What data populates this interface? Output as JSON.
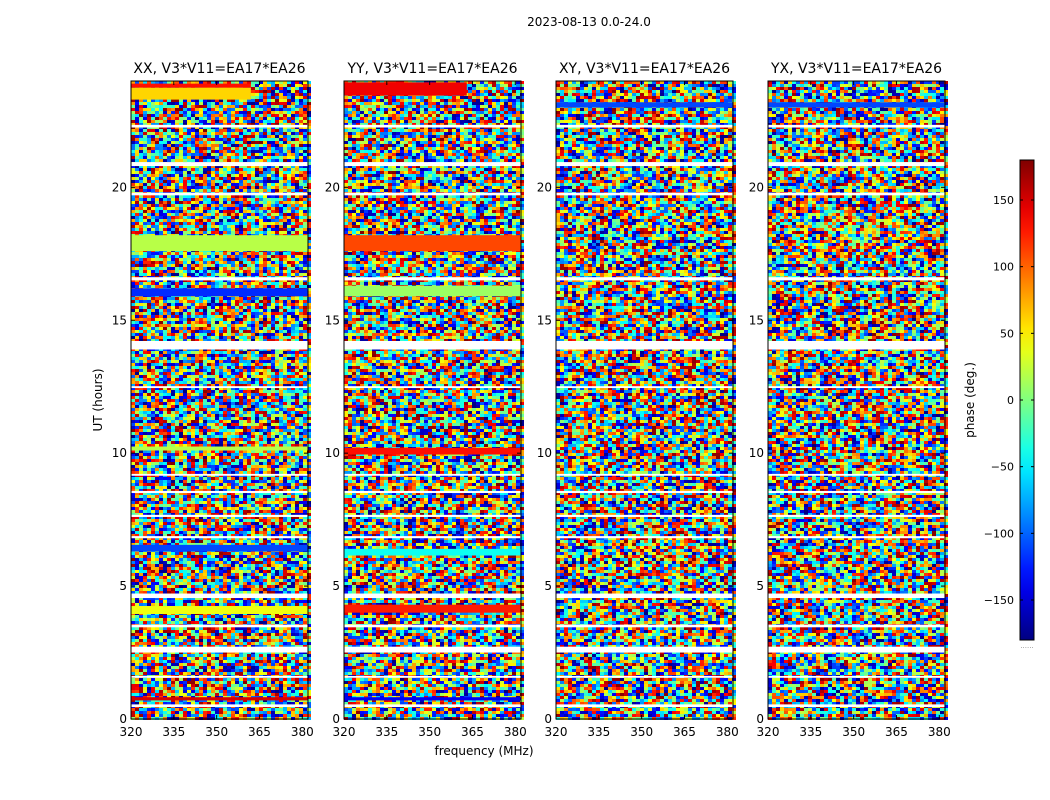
{
  "figure": {
    "suptitle": "2023-08-13 0.0-24.0",
    "xlabel": "frequency (MHz)",
    "ylabel": "UT (hours)"
  },
  "chart_data": {
    "type": "heatmap",
    "x_range": [
      320,
      382
    ],
    "y_range": [
      0,
      24
    ],
    "x_ticks": [
      320,
      335,
      350,
      365,
      380
    ],
    "y_ticks": [
      0,
      5,
      10,
      15,
      20
    ],
    "panels": [
      {
        "title": "XX, V3*V11=EA17*EA26",
        "show_ylabels": true,
        "coherent_bands": [
          {
            "t0": 23.3,
            "t1": 23.75,
            "phase": 60,
            "f1": 362
          },
          {
            "t0": 23.75,
            "t1": 23.9,
            "phase": 130,
            "f1": 362
          },
          {
            "t0": 17.6,
            "t1": 18.2,
            "phase": 20
          },
          {
            "t0": 15.9,
            "t1": 16.2,
            "phase": -120
          },
          {
            "t0": 10.1,
            "t1": 10.25,
            "phase": 20
          },
          {
            "t0": 6.3,
            "t1": 6.55,
            "phase": -110
          },
          {
            "t0": 3.95,
            "t1": 4.25,
            "phase": 40
          },
          {
            "t0": 0.7,
            "t1": 0.82,
            "phase": 150
          }
        ]
      },
      {
        "title": "YY, V3*V11=EA17*EA26",
        "show_ylabels": true,
        "coherent_bands": [
          {
            "t0": 23.45,
            "t1": 23.95,
            "phase": 140,
            "f1": 363
          },
          {
            "t0": 17.6,
            "t1": 18.2,
            "phase": 110
          },
          {
            "t0": 15.9,
            "t1": 16.3,
            "phase": 10
          },
          {
            "t0": 9.95,
            "t1": 10.2,
            "phase": 130
          },
          {
            "t0": 6.15,
            "t1": 6.4,
            "phase": -40
          },
          {
            "t0": 4.0,
            "t1": 4.3,
            "phase": 125
          },
          {
            "t0": 0.7,
            "t1": 0.82,
            "phase": -140
          }
        ]
      },
      {
        "title": "XY, V3*V11=EA17*EA26",
        "show_ylabels": true,
        "coherent_bands": [
          {
            "t0": 23.0,
            "t1": 23.2,
            "phase": -110
          }
        ]
      },
      {
        "title": "YX, V3*V11=EA17*EA26",
        "show_ylabels": true,
        "coherent_bands": [
          {
            "t0": 23.0,
            "t1": 23.2,
            "phase": -110
          }
        ]
      }
    ],
    "flag_gaps_hours": [
      [
        0.45,
        0.55
      ],
      [
        1.55,
        1.62
      ],
      [
        2.5,
        2.72
      ],
      [
        3.45,
        3.55
      ],
      [
        4.55,
        4.72
      ],
      [
        6.8,
        6.88
      ],
      [
        7.6,
        7.68
      ],
      [
        8.5,
        8.58
      ],
      [
        9.15,
        9.22
      ],
      [
        12.45,
        12.52
      ],
      [
        13.9,
        14.22
      ],
      [
        16.5,
        16.62
      ],
      [
        19.7,
        19.8
      ],
      [
        20.8,
        20.95
      ],
      [
        22.25,
        22.35
      ]
    ],
    "colorbar": {
      "label": "phase (deg.)",
      "range": [
        -180,
        180
      ],
      "ticks": [
        -150,
        -100,
        -50,
        0,
        50,
        100,
        150
      ],
      "tick_labels": [
        "−150",
        "−100",
        "−50",
        "0",
        "50",
        "100",
        "150"
      ],
      "colormap": "jet",
      "footer": "......"
    }
  }
}
